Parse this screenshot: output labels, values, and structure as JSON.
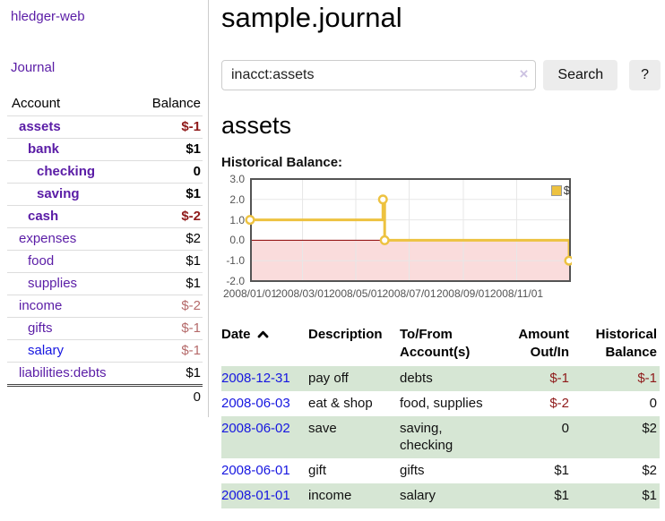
{
  "brand": "hledger-web",
  "nav": {
    "journal": "Journal"
  },
  "sidebar": {
    "headers": {
      "account": "Account",
      "balance": "Balance"
    },
    "accounts": [
      {
        "name": "assets",
        "depth": 1,
        "balance": "$-1",
        "bold": true,
        "balance_style": "neg-strong"
      },
      {
        "name": "bank",
        "depth": 2,
        "balance": "$1",
        "bold": true,
        "balance_style": "pos"
      },
      {
        "name": "checking",
        "depth": 3,
        "balance": "0",
        "bold": true,
        "balance_style": "pos"
      },
      {
        "name": "saving",
        "depth": 3,
        "balance": "$1",
        "bold": true,
        "balance_style": "pos"
      },
      {
        "name": "cash",
        "depth": 2,
        "balance": "$-2",
        "bold": true,
        "balance_style": "neg-strong"
      },
      {
        "name": "expenses",
        "depth": 1,
        "balance": "$2",
        "bold": false,
        "balance_style": "pos"
      },
      {
        "name": "food",
        "depth": 2,
        "balance": "$1",
        "bold": false,
        "balance_style": "pos"
      },
      {
        "name": "supplies",
        "depth": 2,
        "balance": "$1",
        "bold": false,
        "balance_style": "pos"
      },
      {
        "name": "income",
        "depth": 1,
        "balance": "$-2",
        "bold": false,
        "balance_style": "neg-soft"
      },
      {
        "name": "gifts",
        "depth": 2,
        "balance": "$-1",
        "bold": false,
        "balance_style": "neg-soft"
      },
      {
        "name": "salary",
        "depth": 2,
        "balance": "$-1",
        "bold": false,
        "balance_style": "neg-soft",
        "link_style": "unvisited"
      },
      {
        "name": "liabilities:debts",
        "depth": 1,
        "balance": "$1",
        "bold": false,
        "balance_style": "pos"
      }
    ],
    "total": "0"
  },
  "header": {
    "title": "sample.journal"
  },
  "search": {
    "value": "inacct:assets",
    "clear": "×",
    "submit": "Search",
    "help": "?"
  },
  "account_view": {
    "title": "assets",
    "chart_title": "Historical Balance:"
  },
  "chart_data": {
    "type": "line",
    "step": true,
    "title": "Historical Balance",
    "series": [
      {
        "name": "$",
        "color": "#edc240",
        "points": [
          [
            "2008-01-01",
            1.0
          ],
          [
            "2008-06-01",
            2.0
          ],
          [
            "2008-06-03",
            0.0
          ],
          [
            "2008-12-31",
            -1.0
          ]
        ]
      }
    ],
    "x_range": [
      "2008-01-01",
      "2008-12-31"
    ],
    "ylim": [
      -2.0,
      3.0
    ],
    "yticks": [
      "3.0",
      "2.0",
      "1.0",
      "0.0",
      "-1.0",
      "-2.0"
    ],
    "xticks": [
      "2008/01/01",
      "2008/03/01",
      "2008/05/01",
      "2008/07/01",
      "2008/09/01",
      "2008/11/01"
    ],
    "grid": true,
    "legend_position": "top-right",
    "legend": [
      {
        "label": "$",
        "color": "#edc240"
      }
    ],
    "negative_fill": "#fadcdc",
    "zero_line_color": "#8b0000",
    "grid_line_color": "#e7e7e7",
    "border_color": "#545454"
  },
  "register": {
    "columns": [
      {
        "lines": [
          "Date"
        ],
        "sortable": true,
        "align": "left"
      },
      {
        "lines": [
          "Description"
        ],
        "align": "left"
      },
      {
        "lines": [
          "To/From",
          "Account(s)"
        ],
        "align": "left"
      },
      {
        "lines": [
          "Amount",
          "Out/In"
        ],
        "align": "right"
      },
      {
        "lines": [
          "Historical",
          "Balance"
        ],
        "align": "right"
      }
    ],
    "rows": [
      {
        "date": "2008-12-31",
        "description": "pay off",
        "accounts": "debts",
        "amount": "$-1",
        "amount_negative": true,
        "balance": "$-1",
        "balance_negative": true,
        "shaded": true
      },
      {
        "date": "2008-06-03",
        "description": "eat & shop",
        "accounts": "food, supplies",
        "amount": "$-2",
        "amount_negative": true,
        "balance": "0",
        "balance_negative": false,
        "shaded": false
      },
      {
        "date": "2008-06-02",
        "description": "save",
        "accounts": "saving, checking",
        "amount": "0",
        "amount_negative": false,
        "balance": "$2",
        "balance_negative": false,
        "shaded": true
      },
      {
        "date": "2008-06-01",
        "description": "gift",
        "accounts": "gifts",
        "amount": "$1",
        "amount_negative": false,
        "balance": "$2",
        "balance_negative": false,
        "shaded": false
      },
      {
        "date": "2008-01-01",
        "description": "income",
        "accounts": "salary",
        "amount": "$1",
        "amount_negative": false,
        "balance": "$1",
        "balance_negative": false,
        "shaded": true
      }
    ]
  },
  "colors": {
    "link_visited": "#5a1ca6",
    "link_unvisited": "#1616e0",
    "negative_strong": "#8f1a1a",
    "negative_soft": "#b56a6a",
    "row_shaded": "#d6e6d4",
    "series": "#edc240"
  }
}
